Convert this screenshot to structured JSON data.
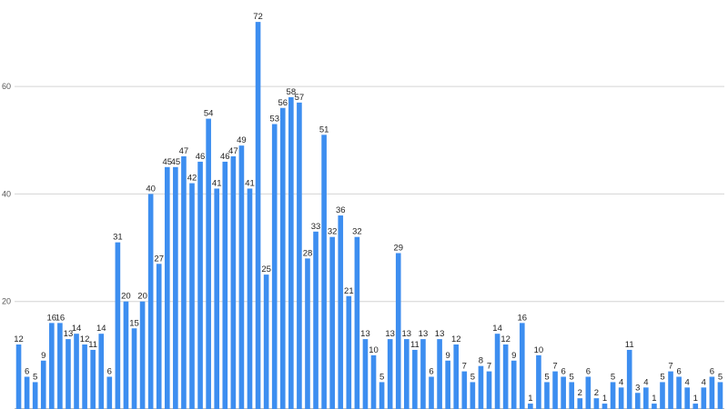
{
  "chart_data": {
    "type": "bar",
    "title": "",
    "xlabel": "",
    "ylabel": "",
    "ylim": [
      0,
      76
    ],
    "yticks": [
      "20",
      "40",
      "60"
    ],
    "grid": true,
    "bar_color": "#3d8ef0",
    "values": [
      12,
      6,
      5,
      9,
      16,
      16,
      13,
      14,
      12,
      11,
      14,
      6,
      31,
      20,
      15,
      20,
      40,
      27,
      45,
      45,
      47,
      42,
      46,
      54,
      41,
      46,
      47,
      49,
      41,
      72,
      25,
      53,
      56,
      58,
      57,
      28,
      33,
      51,
      32,
      36,
      21,
      32,
      13,
      10,
      5,
      13,
      29,
      13,
      11,
      13,
      6,
      13,
      9,
      12,
      7,
      5,
      8,
      7,
      14,
      12,
      9,
      16,
      1,
      10,
      5,
      7,
      6,
      5,
      2,
      6,
      2,
      1,
      5,
      4,
      11,
      3,
      4,
      1,
      5,
      7,
      6,
      4,
      1,
      4,
      6,
      5
    ]
  }
}
